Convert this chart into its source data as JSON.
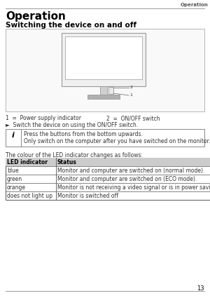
{
  "page_title_header": "Operation",
  "section_title": "Operation",
  "subsection_title": "Switching the device on and off",
  "label1": "1  =  Power supply indicator",
  "label2": "2  =  ON/OFF switch",
  "bullet_text": "►  Switch the device on using the ON/OFF switch.",
  "info_line1": "Press the buttons from the bottom upwards.",
  "info_line2": "Only switch on the computer after you have switched on the monitor.",
  "table_intro": "The colour of the LED indicator changes as follows:",
  "table_headers": [
    "LED indicator",
    "Status"
  ],
  "table_rows": [
    [
      "blue",
      "Monitor and computer are switched on (normal mode)."
    ],
    [
      "green",
      "Monitor and computer are switched on (ECO mode)."
    ],
    [
      "orange",
      "Monitor is not receiving a video signal or is in power saving mode."
    ],
    [
      "does not light up",
      "Monitor is switched off"
    ]
  ],
  "page_number": "13",
  "bg_color": "#ffffff",
  "header_text_color": "#555555",
  "body_text_color": "#333333",
  "title_color": "#000000",
  "line_color": "#999999",
  "table_border_color": "#555555",
  "table_header_bg": "#cccccc",
  "monitor_outer_color": "#999999",
  "monitor_inner_color": "#ffffff",
  "monitor_stand_color": "#aaaaaa",
  "monitor_base_color": "#888888",
  "diagram_box_edge": "#aaaaaa",
  "diagram_box_bg": "#f9f9f9"
}
